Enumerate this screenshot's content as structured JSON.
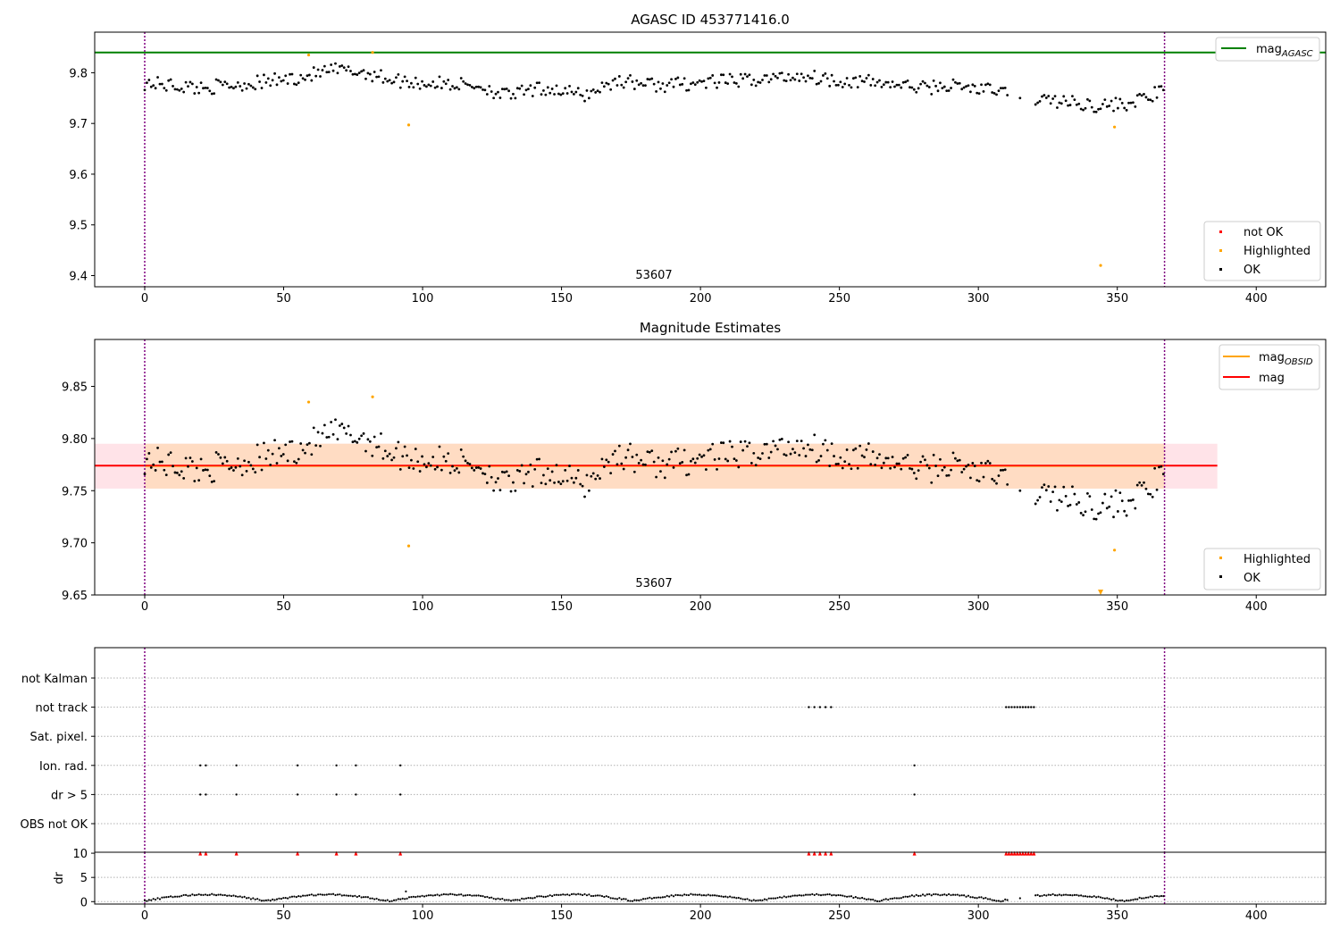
{
  "chart_data": [
    {
      "id": "panel1",
      "type": "scatter",
      "title": "AGASC ID 453771416.0",
      "annotation": "53607",
      "xlim": [
        -18,
        425
      ],
      "ylim": [
        9.378,
        9.88
      ],
      "xticks": [
        0,
        50,
        100,
        150,
        200,
        250,
        300,
        350,
        400
      ],
      "yticks": [
        9.4,
        9.5,
        9.6,
        9.7,
        9.8
      ],
      "ytick_labels": [
        "9.4",
        "9.5",
        "9.6",
        "9.7",
        "9.8"
      ],
      "vlines": [
        0,
        367
      ],
      "hline": {
        "name": "mag_AGASC",
        "value": 9.84,
        "color": "#008000"
      },
      "legend_lines": [
        {
          "label": "mag",
          "sub": "AGASC",
          "color": "#008000"
        }
      ],
      "legend_points": [
        {
          "label": "not OK",
          "color": "#ff0000"
        },
        {
          "label": "Highlighted",
          "color": "#ffa500"
        },
        {
          "label": "OK",
          "color": "#000000"
        }
      ],
      "highlighted": [
        [
          59,
          9.835
        ],
        [
          82,
          9.84
        ],
        [
          95,
          9.697
        ],
        [
          344,
          9.42
        ],
        [
          349,
          9.693
        ]
      ],
      "ok_series": {
        "x_start": 0,
        "x_step": 0.78,
        "x_end": 367,
        "gaps": [
          [
            311,
            320
          ]
        ],
        "anchors": [
          [
            0,
            9.78
          ],
          [
            20,
            9.77
          ],
          [
            40,
            9.78
          ],
          [
            55,
            9.79
          ],
          [
            68,
            9.805
          ],
          [
            80,
            9.8
          ],
          [
            90,
            9.785
          ],
          [
            100,
            9.78
          ],
          [
            120,
            9.775
          ],
          [
            130,
            9.755
          ],
          [
            145,
            9.77
          ],
          [
            158,
            9.755
          ],
          [
            170,
            9.785
          ],
          [
            185,
            9.775
          ],
          [
            200,
            9.78
          ],
          [
            215,
            9.785
          ],
          [
            228,
            9.79
          ],
          [
            236,
            9.795
          ],
          [
            250,
            9.785
          ],
          [
            265,
            9.78
          ],
          [
            280,
            9.77
          ],
          [
            290,
            9.775
          ],
          [
            305,
            9.765
          ],
          [
            320,
            9.75
          ],
          [
            335,
            9.74
          ],
          [
            345,
            9.735
          ],
          [
            355,
            9.74
          ],
          [
            367,
            9.765
          ]
        ]
      }
    },
    {
      "id": "panel2",
      "type": "scatter",
      "title": "Magnitude Estimates",
      "annotation": "53607",
      "xlim": [
        -18,
        425
      ],
      "ylim": [
        9.65,
        9.895
      ],
      "xticks": [
        0,
        50,
        100,
        150,
        200,
        250,
        300,
        350,
        400
      ],
      "yticks": [
        9.65,
        9.7,
        9.75,
        9.8,
        9.85
      ],
      "ytick_labels": [
        "9.65",
        "9.70",
        "9.75",
        "9.80",
        "9.85"
      ],
      "vlines": [
        0,
        367
      ],
      "band_outer": {
        "low": 9.752,
        "high": 9.795,
        "x0": -18,
        "x1": 386,
        "color": "#ffc0cb"
      },
      "band_inner": {
        "low": 9.752,
        "high": 9.795,
        "x0": 0,
        "x1": 367,
        "color": "#ffdab9"
      },
      "mag_line": {
        "value": 9.774,
        "x0": -18,
        "x1": 386,
        "color": "#ff0000"
      },
      "mag_obsid_line": {
        "value": 9.774,
        "x0": 0,
        "x1": 367,
        "color": "#ffa500"
      },
      "legend_lines": [
        {
          "label": "mag",
          "sub": "OBSID",
          "color": "#ffa500"
        },
        {
          "label": "mag",
          "sub": "",
          "color": "#ff0000"
        }
      ],
      "legend_points": [
        {
          "label": "Highlighted",
          "color": "#ffa500"
        },
        {
          "label": "OK",
          "color": "#000000"
        }
      ],
      "highlighted": [
        [
          59,
          9.835
        ],
        [
          82,
          9.84
        ],
        [
          95,
          9.697
        ],
        [
          349,
          9.693
        ]
      ],
      "highlighted_offscale": [
        [
          344,
          9.42
        ]
      ]
    },
    {
      "id": "panel3",
      "type": "scatter",
      "xlim": [
        -18,
        425
      ],
      "xticks": [
        0,
        50,
        100,
        150,
        200,
        250,
        300,
        350,
        400
      ],
      "vlines": [
        0,
        367
      ],
      "categories": [
        "not Kalman",
        "not track",
        "Sat. pixel.",
        "Ion. rad.",
        "dr > 5",
        "OBS not OK"
      ],
      "flags": {
        "not track": [
          239,
          241,
          243,
          245,
          247,
          310,
          311,
          312,
          313,
          314,
          315,
          316,
          317,
          318,
          319,
          320
        ],
        "Ion. rad.": [
          20,
          22,
          33,
          55,
          69,
          76,
          92,
          277
        ],
        "dr > 5": [
          20,
          22,
          33,
          55,
          69,
          76,
          92,
          277
        ]
      }
    },
    {
      "id": "panel4",
      "type": "scatter",
      "ylabel": "dr",
      "xlim": [
        -18,
        425
      ],
      "ylim": [
        -0.5,
        10.2
      ],
      "xticks": [
        0,
        50,
        100,
        150,
        200,
        250,
        300,
        350,
        400
      ],
      "yticks": [
        0,
        5,
        10
      ],
      "ytick_labels": [
        "0",
        "5",
        "10"
      ],
      "vlines": [
        0,
        367
      ],
      "outlier_marker_value": 10,
      "outlier_x": [
        20,
        22,
        33,
        55,
        69,
        76,
        92,
        239,
        241,
        243,
        245,
        247,
        277,
        310,
        311,
        312,
        313,
        314,
        315,
        316,
        317,
        318,
        319,
        320
      ]
    }
  ],
  "colors": {
    "ok": "#000000",
    "highlighted": "#ffa500",
    "not_ok": "#ff0000",
    "vline": "#800080",
    "grid": "#b0b0b0"
  }
}
